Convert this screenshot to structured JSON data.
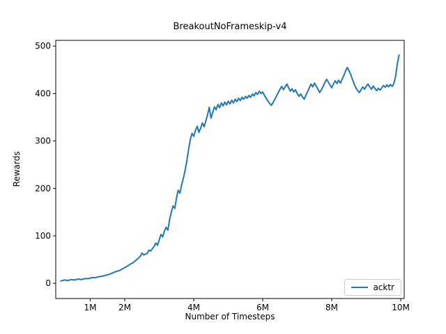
{
  "figure": {
    "background": "#ffffff"
  },
  "chart_data": {
    "type": "line",
    "title": "BreakoutNoFrameskip-v4",
    "xlabel": "Number of Timesteps",
    "ylabel": "Rewards",
    "x_unit": "millions of timesteps",
    "xlim": [
      0,
      10.1
    ],
    "ylim": [
      -32,
      512
    ],
    "x_ticks": [
      1,
      2,
      4,
      6,
      8,
      10
    ],
    "x_tick_labels": [
      "1M",
      "2M",
      "4M",
      "6M",
      "8M",
      "10M"
    ],
    "y_ticks": [
      0,
      100,
      200,
      300,
      400,
      500
    ],
    "grid": false,
    "legend_position": "lower right",
    "axes_color": "#000000",
    "series": [
      {
        "name": "acktr",
        "color": "#1f77b4",
        "x": [
          0.15,
          0.25,
          0.35,
          0.45,
          0.55,
          0.65,
          0.75,
          0.85,
          0.95,
          1.05,
          1.15,
          1.25,
          1.35,
          1.45,
          1.55,
          1.65,
          1.75,
          1.85,
          1.95,
          2.05,
          2.15,
          2.25,
          2.35,
          2.45,
          2.5,
          2.55,
          2.65,
          2.7,
          2.75,
          2.85,
          2.9,
          2.95,
          3.0,
          3.05,
          3.1,
          3.15,
          3.2,
          3.25,
          3.3,
          3.35,
          3.4,
          3.45,
          3.5,
          3.55,
          3.6,
          3.65,
          3.7,
          3.75,
          3.8,
          3.85,
          3.9,
          3.95,
          4.0,
          4.05,
          4.1,
          4.15,
          4.2,
          4.25,
          4.3,
          4.35,
          4.4,
          4.45,
          4.5,
          4.55,
          4.6,
          4.65,
          4.7,
          4.75,
          4.8,
          4.85,
          4.9,
          4.95,
          5.0,
          5.05,
          5.1,
          5.15,
          5.2,
          5.25,
          5.3,
          5.35,
          5.4,
          5.45,
          5.5,
          5.55,
          5.6,
          5.65,
          5.7,
          5.75,
          5.8,
          5.85,
          5.9,
          5.95,
          6.0,
          6.05,
          6.1,
          6.15,
          6.2,
          6.25,
          6.3,
          6.35,
          6.4,
          6.45,
          6.5,
          6.55,
          6.6,
          6.65,
          6.7,
          6.75,
          6.8,
          6.85,
          6.9,
          6.95,
          7.0,
          7.05,
          7.1,
          7.15,
          7.2,
          7.25,
          7.3,
          7.35,
          7.4,
          7.45,
          7.5,
          7.55,
          7.6,
          7.65,
          7.7,
          7.75,
          7.8,
          7.85,
          7.9,
          7.95,
          8.0,
          8.05,
          8.1,
          8.15,
          8.2,
          8.25,
          8.3,
          8.35,
          8.4,
          8.45,
          8.5,
          8.55,
          8.6,
          8.65,
          8.7,
          8.75,
          8.8,
          8.85,
          8.9,
          8.95,
          9.0,
          9.05,
          9.1,
          9.15,
          9.2,
          9.25,
          9.3,
          9.35,
          9.4,
          9.45,
          9.5,
          9.55,
          9.6,
          9.65,
          9.7,
          9.75,
          9.8,
          9.85,
          9.9,
          9.95
        ],
        "y": [
          5,
          7,
          6,
          8,
          7,
          9,
          8,
          10,
          10,
          12,
          12,
          14,
          15,
          17,
          19,
          22,
          25,
          27,
          31,
          35,
          40,
          44,
          50,
          57,
          64,
          60,
          63,
          70,
          68,
          78,
          85,
          80,
          92,
          103,
          98,
          110,
          118,
          112,
          135,
          150,
          163,
          158,
          180,
          196,
          190,
          208,
          222,
          238,
          258,
          282,
          303,
          316,
          310,
          322,
          331,
          318,
          327,
          338,
          330,
          342,
          355,
          371,
          348,
          360,
          372,
          366,
          377,
          370,
          380,
          374,
          382,
          376,
          384,
          378,
          386,
          380,
          388,
          383,
          390,
          385,
          392,
          388,
          394,
          390,
          396,
          392,
          399,
          395,
          402,
          398,
          405,
          400,
          403,
          396,
          390,
          384,
          379,
          375,
          381,
          388,
          395,
          402,
          409,
          415,
          408,
          414,
          420,
          412,
          405,
          410,
          403,
          408,
          400,
          394,
          399,
          393,
          388,
          396,
          404,
          412,
          420,
          414,
          422,
          416,
          409,
          402,
          408,
          415,
          423,
          430,
          424,
          418,
          412,
          420,
          427,
          421,
          428,
          422,
          430,
          438,
          447,
          455,
          448,
          440,
          430,
          420,
          412,
          406,
          402,
          408,
          414,
          409,
          415,
          420,
          414,
          409,
          416,
          411,
          406,
          411,
          407,
          412,
          417,
          413,
          418,
          414,
          419,
          415,
          421,
          435,
          462,
          481
        ]
      }
    ]
  },
  "legend": {
    "entries": [
      {
        "label": "acktr",
        "color": "#1f77b4"
      }
    ]
  }
}
